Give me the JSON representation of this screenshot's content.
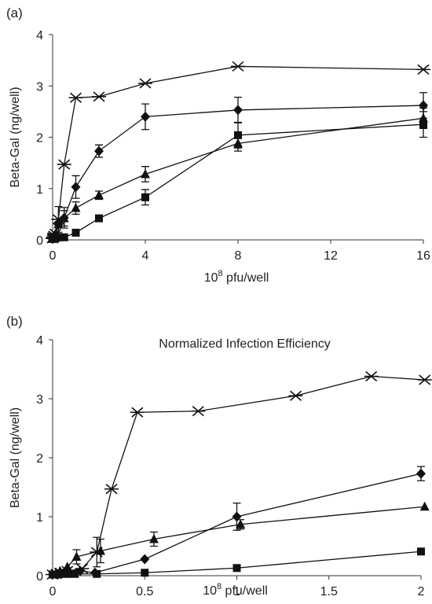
{
  "chart_data": [
    {
      "panel_label": "(a)",
      "type": "line",
      "title": "",
      "xlabel": "10",
      "xlabel_sup": "8",
      "xlabel_tail": " pfu/well",
      "ylabel": "Beta-Gal (ng/well)",
      "xlim": [
        0,
        16
      ],
      "ylim": [
        0,
        4
      ],
      "xticks": [
        0,
        4,
        8,
        12,
        16
      ],
      "xtick_labels": [
        "0",
        "4",
        "8",
        "12",
        "16"
      ],
      "yticks": [
        0,
        1,
        2,
        3,
        4
      ],
      "ytick_labels": [
        "0",
        "1",
        "2",
        "3",
        "4"
      ],
      "grid": false,
      "series": [
        {
          "marker": "x-star",
          "x": [
            0,
            0.03,
            0.06,
            0.12,
            0.25,
            0.5,
            1,
            2,
            4,
            8,
            16
          ],
          "y": [
            0.03,
            0.05,
            0.08,
            0.12,
            0.4,
            1.47,
            2.77,
            2.79,
            3.05,
            3.38,
            3.32
          ],
          "err": [
            0,
            0,
            0,
            0,
            0.25,
            0,
            0,
            0,
            0,
            0,
            0
          ]
        },
        {
          "marker": "diamond",
          "x": [
            0,
            0.06,
            0.12,
            0.25,
            0.5,
            1,
            2,
            4,
            8,
            16
          ],
          "y": [
            0.02,
            0.04,
            0.08,
            0.3,
            0.43,
            1.03,
            1.73,
            2.4,
            2.53,
            2.62
          ],
          "err": [
            0,
            0,
            0,
            0.05,
            0.2,
            0.22,
            0.12,
            0.25,
            0.25,
            0.25
          ]
        },
        {
          "marker": "triangle",
          "x": [
            0,
            0.06,
            0.12,
            0.25,
            0.5,
            1,
            2,
            4,
            8,
            16
          ],
          "y": [
            0.02,
            0.05,
            0.12,
            0.3,
            0.42,
            0.62,
            0.87,
            1.28,
            1.88,
            2.37
          ],
          "err": [
            0,
            0,
            0,
            0.05,
            0.15,
            0.12,
            0.08,
            0.15,
            0.15,
            0.2
          ]
        },
        {
          "marker": "square",
          "x": [
            0,
            0.06,
            0.12,
            0.25,
            0.5,
            1,
            2,
            4,
            8,
            16
          ],
          "y": [
            0.02,
            0.03,
            0.03,
            0.05,
            0.05,
            0.14,
            0.42,
            0.83,
            2.04,
            2.25
          ],
          "err": [
            0,
            0,
            0,
            0,
            0,
            0.03,
            0.05,
            0.15,
            0.25,
            0.25
          ]
        }
      ]
    },
    {
      "panel_label": "(b)",
      "type": "line",
      "title": "Normalized Infection Efficiency",
      "xlabel": "10",
      "xlabel_sup": "8",
      "xlabel_tail": " pfu/well",
      "ylabel": "Beta-Gal (ng/well)",
      "xlim": [
        0,
        2
      ],
      "ylim": [
        0,
        4
      ],
      "xticks": [
        0,
        0.5,
        1,
        1.5,
        2
      ],
      "xtick_labels": [
        "0",
        "0.5",
        "1",
        "1.5",
        "2"
      ],
      "yticks": [
        0,
        1,
        2,
        3,
        4
      ],
      "ytick_labels": [
        "0",
        "1",
        "2",
        "3",
        "4"
      ],
      "grid": false,
      "series": [
        {
          "marker": "x-star",
          "x": [
            0,
            0.02,
            0.04,
            0.08,
            0.16,
            0.24,
            0.32,
            0.46,
            0.79,
            1.32,
            1.73,
            2.02
          ],
          "y": [
            0.02,
            0.03,
            0.05,
            0.08,
            0.12,
            0.4,
            1.47,
            2.77,
            2.79,
            3.05,
            3.38,
            3.32
          ],
          "err": [
            0,
            0,
            0,
            0,
            0,
            0.25,
            0,
            0,
            0,
            0,
            0,
            0
          ]
        },
        {
          "marker": "diamond",
          "x": [
            0,
            0.02,
            0.04,
            0.08,
            0.15,
            0.23,
            0.5,
            1.0,
            2.0
          ],
          "y": [
            0.02,
            0.03,
            0.04,
            0.06,
            0.08,
            0.05,
            0.28,
            1.0,
            1.73
          ],
          "err": [
            0,
            0,
            0,
            0,
            0,
            0,
            0,
            0.23,
            0.12
          ]
        },
        {
          "marker": "triangle",
          "x": [
            0,
            0.02,
            0.04,
            0.08,
            0.13,
            0.26,
            0.55,
            1.02,
            2.02
          ],
          "y": [
            0.02,
            0.05,
            0.08,
            0.15,
            0.32,
            0.42,
            0.62,
            0.87,
            1.17
          ],
          "err": [
            0,
            0,
            0,
            0,
            0.12,
            0.2,
            0.12,
            0.08,
            0
          ]
        },
        {
          "marker": "square",
          "x": [
            0,
            0.02,
            0.04,
            0.08,
            0.12,
            0.24,
            0.5,
            1.0,
            2.0
          ],
          "y": [
            0.02,
            0.02,
            0.03,
            0.03,
            0.03,
            0.03,
            0.05,
            0.13,
            0.41
          ],
          "err": [
            0,
            0,
            0,
            0,
            0,
            0,
            0,
            0.03,
            0.05
          ]
        }
      ]
    }
  ]
}
